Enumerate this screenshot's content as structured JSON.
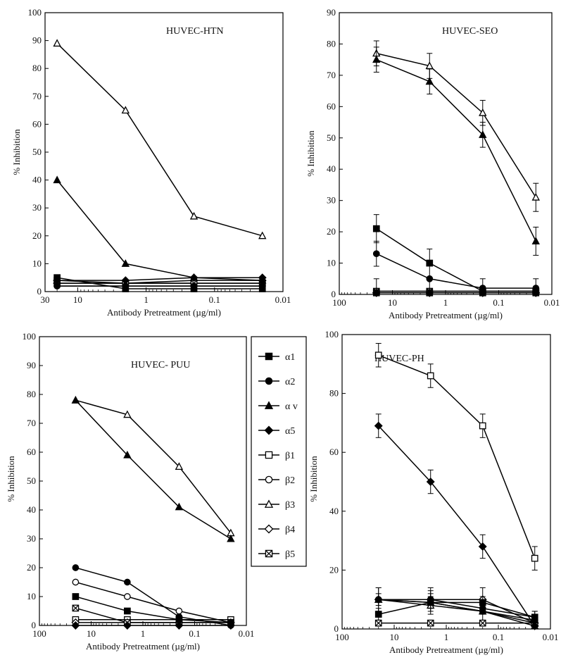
{
  "figure": {
    "legend": {
      "entries": [
        {
          "label": "α1",
          "marker": "square-filled"
        },
        {
          "label": "α2",
          "marker": "circle-filled"
        },
        {
          "label": "α v",
          "marker": "triangle-filled"
        },
        {
          "label": "α5",
          "marker": "diamond-filled"
        },
        {
          "label": "β1",
          "marker": "square-open"
        },
        {
          "label": "β2",
          "marker": "circle-open"
        },
        {
          "label": "β3",
          "marker": "triangle-open"
        },
        {
          "label": "β4",
          "marker": "diamond-open"
        },
        {
          "label": "β5",
          "marker": "x-box"
        }
      ]
    }
  },
  "chart_data": [
    {
      "type": "line",
      "title": "HUVEC-HTN",
      "xlabel": "Antibody Pretreatment (µg/ml)",
      "ylabel": "% Inhibition",
      "xscale": "log-reversed",
      "xlim": [
        30,
        0.01
      ],
      "xticks": [
        "30",
        "10",
        "1",
        "0.1",
        "0.01"
      ],
      "xtick_values": [
        30,
        10,
        1,
        0.1,
        0.01
      ],
      "ylim": [
        0,
        100
      ],
      "yticks": [
        "0",
        "10",
        "20",
        "30",
        "40",
        "50",
        "60",
        "70",
        "80",
        "90",
        "100"
      ],
      "x": [
        20,
        2,
        0.2,
        0.02
      ],
      "series": [
        {
          "name": "α1",
          "values": [
            5,
            1,
            1,
            1
          ]
        },
        {
          "name": "α2",
          "values": [
            2,
            2,
            2,
            2
          ]
        },
        {
          "name": "α v",
          "values": [
            40,
            10,
            5,
            4
          ]
        },
        {
          "name": "α5",
          "values": [
            4,
            4,
            5,
            5
          ]
        },
        {
          "name": "β1",
          "values": [
            3,
            3,
            3,
            3
          ]
        },
        {
          "name": "β2",
          "values": [
            2,
            2,
            2,
            2
          ]
        },
        {
          "name": "β3",
          "values": [
            89,
            65,
            27,
            20
          ]
        },
        {
          "name": "β4",
          "values": [
            3,
            3,
            4,
            4
          ]
        },
        {
          "name": "β5",
          "values": [
            4,
            3,
            3,
            3
          ]
        }
      ]
    },
    {
      "type": "line",
      "title": "HUVEC-SEO",
      "xlabel": "Antibody Pretreatment (µg/ml)",
      "ylabel": "% Inhibition",
      "xscale": "log-reversed",
      "xlim": [
        100,
        0.01
      ],
      "xticks": [
        "100",
        "10",
        "1",
        "0.1",
        "0.01"
      ],
      "xtick_values": [
        100,
        10,
        1,
        0.1,
        0.01
      ],
      "ylim": [
        0,
        90
      ],
      "yticks": [
        "0",
        "10",
        "20",
        "30",
        "40",
        "50",
        "60",
        "70",
        "80",
        "90"
      ],
      "x": [
        20,
        2,
        0.2,
        0.02
      ],
      "series": [
        {
          "name": "α1",
          "values": [
            21,
            10,
            1,
            1
          ],
          "err": [
            4.5,
            4.5,
            0.5,
            0.5
          ]
        },
        {
          "name": "α2",
          "values": [
            13,
            5,
            2,
            2
          ],
          "err": [
            4,
            0,
            0,
            0
          ]
        },
        {
          "name": "α v",
          "values": [
            75,
            68,
            51,
            17
          ],
          "err": [
            4,
            4,
            4,
            4.5
          ]
        },
        {
          "name": "α5",
          "values": [
            0.5,
            0.5,
            0.5,
            0.5
          ],
          "err": [
            4.5,
            4.5,
            4.5,
            4.5
          ]
        },
        {
          "name": "β1",
          "values": [
            1,
            1,
            1,
            1
          ]
        },
        {
          "name": "β2",
          "values": [
            1,
            1,
            1,
            1
          ]
        },
        {
          "name": "β3",
          "values": [
            77,
            73,
            58,
            31
          ],
          "err": [
            4,
            4,
            4,
            4.5
          ]
        },
        {
          "name": "β4",
          "values": [
            0.5,
            0.5,
            0.5,
            0.5
          ]
        },
        {
          "name": "β5",
          "values": [
            0.5,
            0.5,
            0.5,
            0.5
          ]
        }
      ]
    },
    {
      "type": "line",
      "title": "HUVEC- PUU",
      "xlabel": "Antibody Pretreatment (µg/ml)",
      "ylabel": "% Inhibition",
      "xscale": "log-reversed",
      "xlim": [
        100,
        0.01
      ],
      "xticks": [
        "100",
        "10",
        "1",
        "0.1",
        "0.01"
      ],
      "xtick_values": [
        100,
        10,
        1,
        0.1,
        0.01
      ],
      "ylim": [
        0,
        100
      ],
      "yticks": [
        "0",
        "10",
        "20",
        "30",
        "40",
        "50",
        "60",
        "70",
        "80",
        "90",
        "100"
      ],
      "x": [
        20,
        2,
        0.2,
        0.02
      ],
      "series": [
        {
          "name": "α1",
          "values": [
            10,
            5,
            2,
            1
          ]
        },
        {
          "name": "α2",
          "values": [
            20,
            15,
            3,
            0
          ]
        },
        {
          "name": "α v",
          "values": [
            78,
            59,
            41,
            30
          ]
        },
        {
          "name": "α5",
          "values": [
            0,
            0,
            0,
            0
          ]
        },
        {
          "name": "β1",
          "values": [
            2,
            2,
            2,
            2
          ]
        },
        {
          "name": "β2",
          "values": [
            15,
            10,
            5,
            1
          ]
        },
        {
          "name": "β3",
          "values": [
            78,
            73,
            55,
            32
          ]
        },
        {
          "name": "β4",
          "values": [
            1,
            1,
            1,
            1
          ]
        },
        {
          "name": "β5",
          "values": [
            6,
            1,
            1,
            1
          ]
        }
      ]
    },
    {
      "type": "line",
      "title": "HUVEC-PH",
      "xlabel": "Antibody Pretreatment (µg/ml)",
      "ylabel": "% Inhibition",
      "xscale": "log-reversed",
      "xlim": [
        100,
        0.01
      ],
      "xticks": [
        "100",
        "10",
        "1",
        "0.1",
        "0.01"
      ],
      "xtick_values": [
        100,
        10,
        1,
        0.1,
        0.01
      ],
      "ylim": [
        0,
        100
      ],
      "yticks": [
        "0",
        "20",
        "40",
        "60",
        "80",
        "100"
      ],
      "x": [
        20,
        2,
        0.2,
        0.02
      ],
      "series": [
        {
          "name": "α1",
          "values": [
            5,
            9,
            9,
            4
          ],
          "err": [
            2,
            2,
            2,
            2
          ]
        },
        {
          "name": "α2",
          "values": [
            10,
            10,
            7,
            4
          ],
          "err": [
            2,
            2,
            2,
            2
          ]
        },
        {
          "name": "α v",
          "values": [
            10,
            9,
            6,
            3
          ]
        },
        {
          "name": "α5",
          "values": [
            69,
            50,
            28,
            1
          ],
          "err": [
            4,
            4,
            4,
            2
          ]
        },
        {
          "name": "β1",
          "values": [
            93,
            86,
            69,
            24
          ],
          "err": [
            4,
            4,
            4,
            4
          ]
        },
        {
          "name": "β2",
          "values": [
            10,
            9,
            6,
            2
          ],
          "err": [
            4,
            4,
            4,
            2
          ]
        },
        {
          "name": "β3",
          "values": [
            10,
            8,
            6,
            1
          ]
        },
        {
          "name": "β4",
          "values": [
            10,
            10,
            10,
            2
          ],
          "err": [
            4,
            4,
            4,
            2
          ]
        },
        {
          "name": "β5",
          "values": [
            2,
            2,
            2,
            2
          ]
        }
      ]
    }
  ]
}
